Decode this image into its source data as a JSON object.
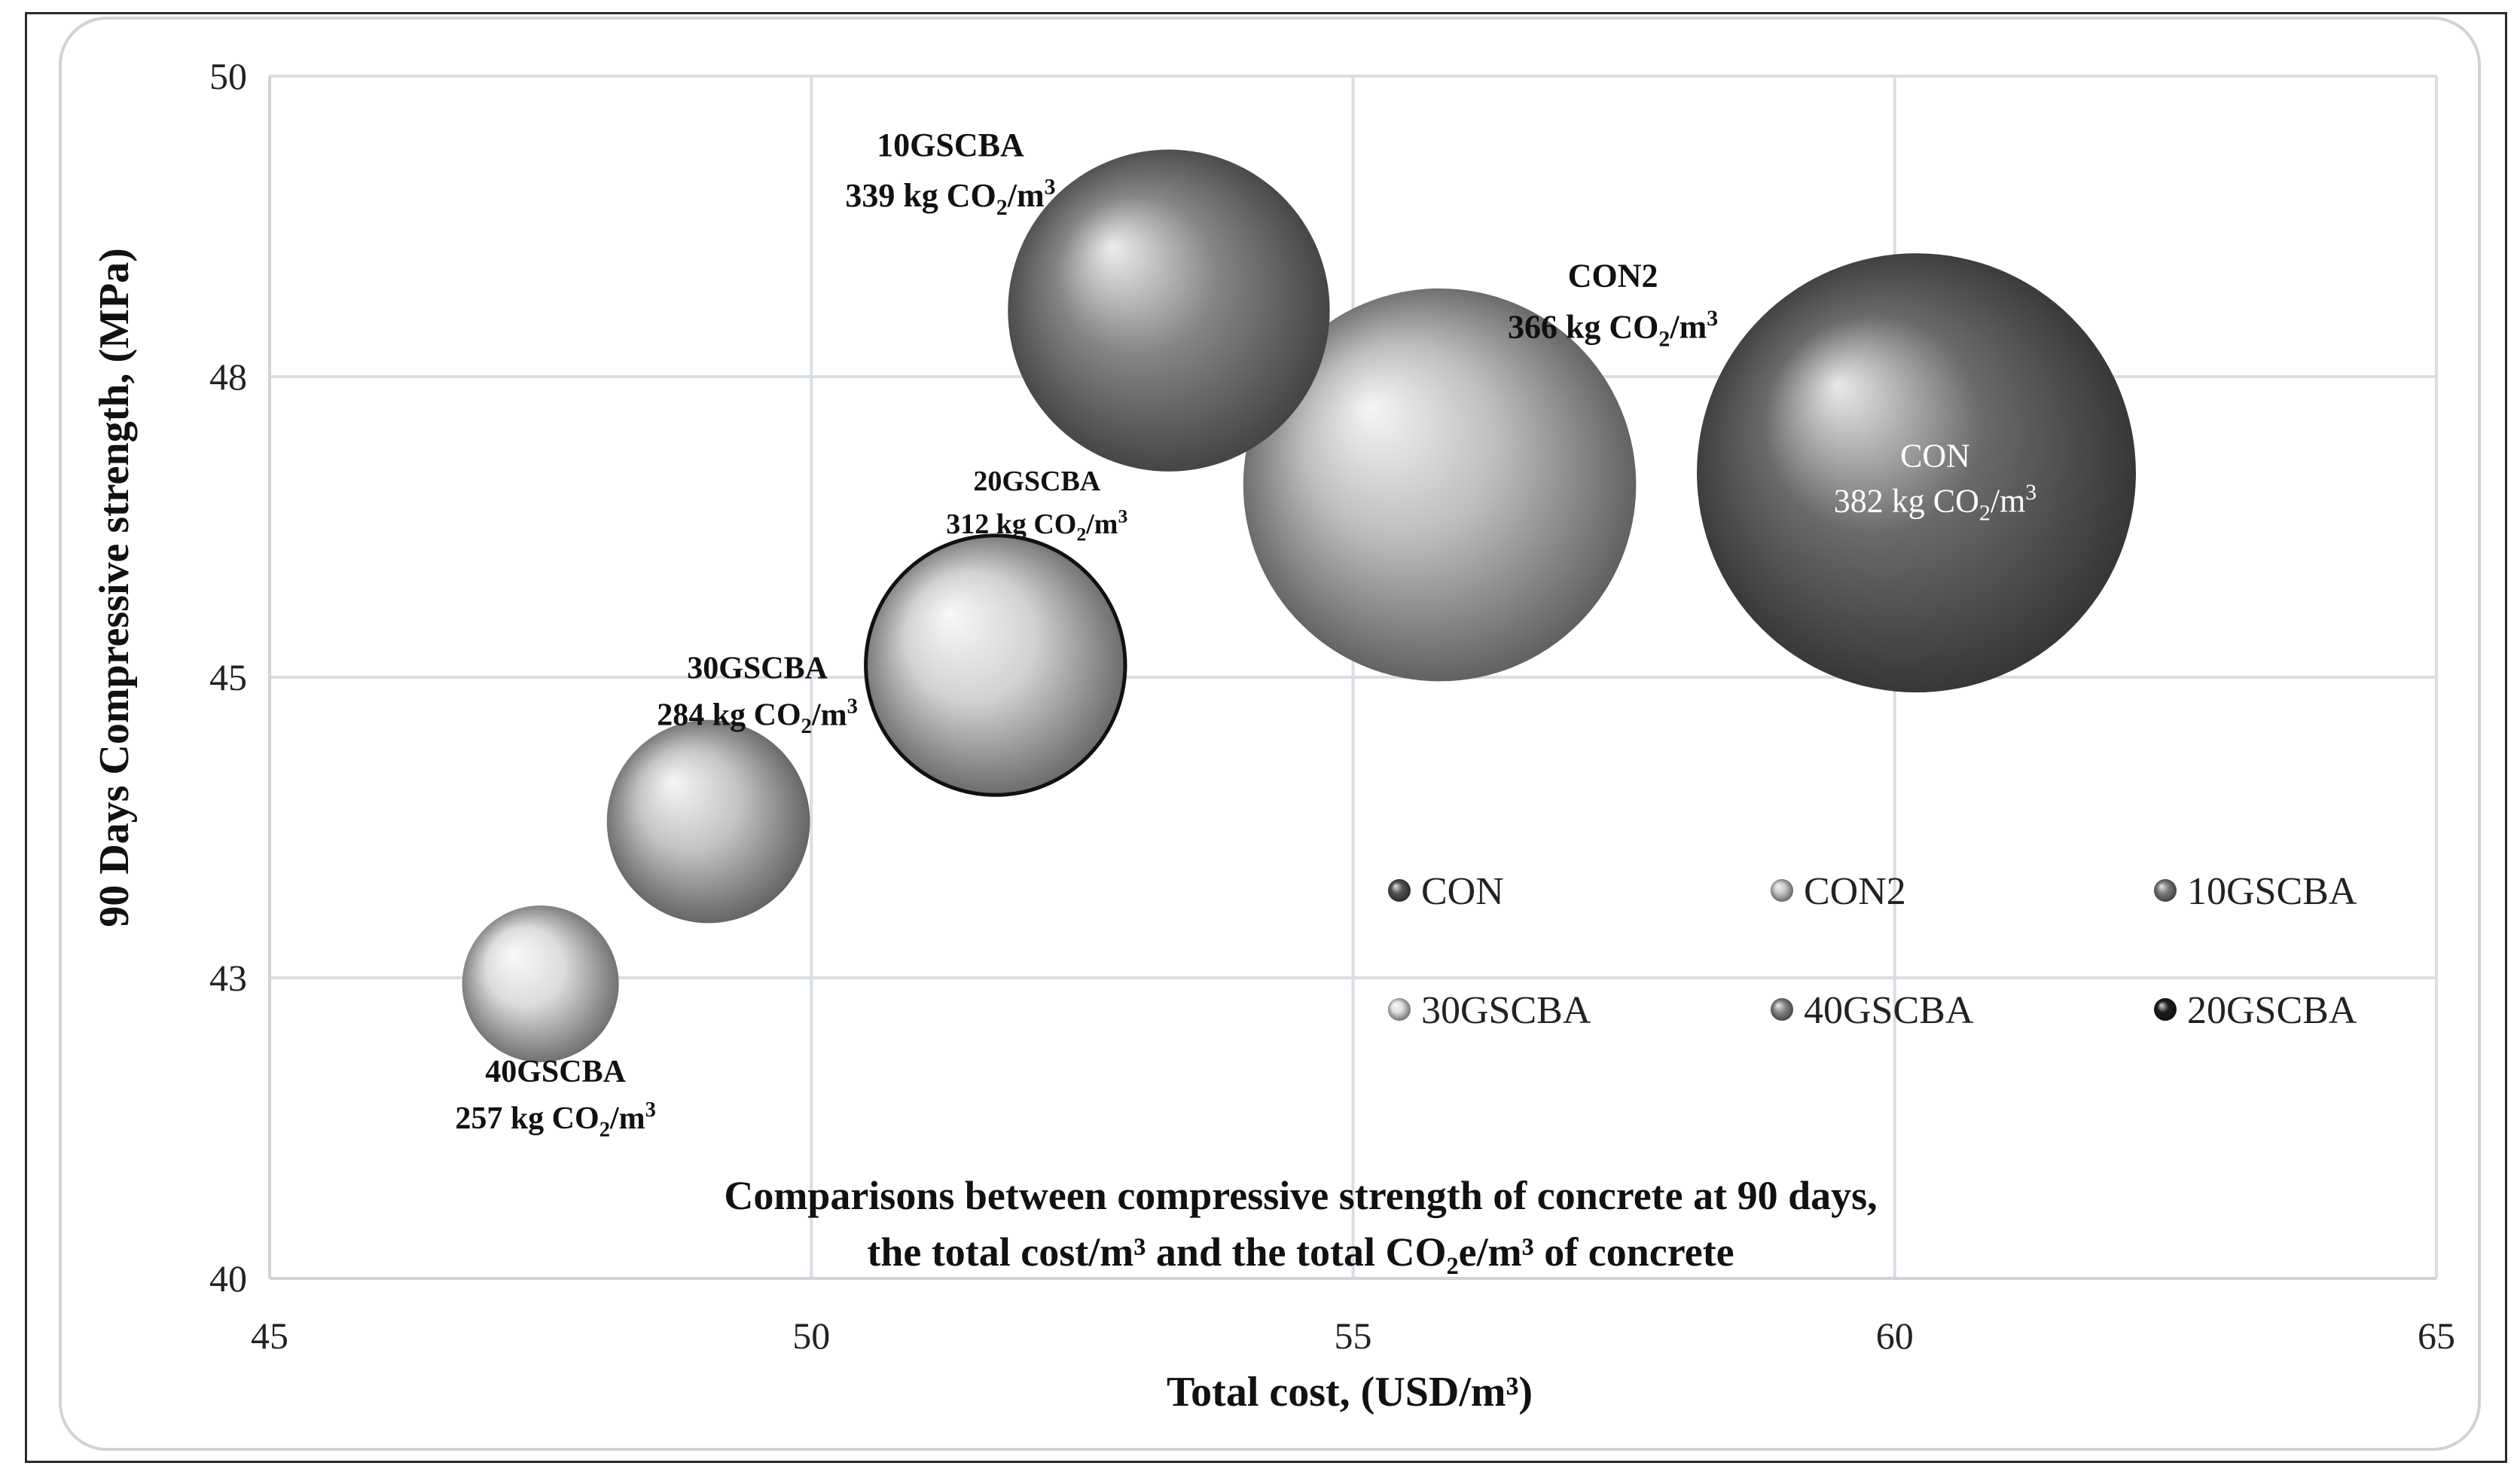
{
  "chart_data": {
    "type": "bubble",
    "title_lines": [
      "Comparisons between compressive strength of concrete at 90 days,",
      "the total cost/m³ and the total CO₂e/m³ of concrete"
    ],
    "xlabel": "Total cost, (USD/m³)",
    "ylabel": "90 Days Compressive strength, (MPa)",
    "xlim": [
      45,
      65
    ],
    "ylim": [
      40,
      50
    ],
    "x_ticks": [
      "45",
      "50",
      "55",
      "60",
      "65"
    ],
    "y_ticks": [
      {
        "value": 40,
        "label": "40"
      },
      {
        "value": 42.5,
        "label": "43"
      },
      {
        "value": 45,
        "label": "45"
      },
      {
        "value": 47.5,
        "label": "48"
      },
      {
        "value": 50,
        "label": "50"
      }
    ],
    "series": [
      {
        "name": "CON",
        "x": 60.2,
        "y": 46.7,
        "co2": 382,
        "label_name": "CON",
        "label_value": "382 kg CO",
        "label_sub": "2",
        "label_unit": "/m",
        "label_sup": "3",
        "color": "#6a6a6a",
        "label_color": "#ffffff",
        "label_bold": false,
        "outline": false
      },
      {
        "name": "CON2",
        "x": 55.8,
        "y": 46.6,
        "co2": 366,
        "label_name": "CON2",
        "label_value": "366 kg CO",
        "label_sub": "2",
        "label_unit": "/m",
        "label_sup": "3",
        "color": "#bdbdbd",
        "label_color": "#111111",
        "label_bold": true,
        "outline": false
      },
      {
        "name": "10GSCBA",
        "x": 53.3,
        "y": 48.05,
        "co2": 339,
        "label_name": "10GSCBA",
        "label_value": "339 kg CO",
        "label_sub": "2",
        "label_unit": "/m",
        "label_sup": "3",
        "color": "#858585",
        "label_color": "#111111",
        "label_bold": true,
        "outline": false
      },
      {
        "name": "20GSCBA",
        "x": 51.7,
        "y": 45.1,
        "co2": 312,
        "label_name": "20GSCBA",
        "label_value": "312 kg CO",
        "label_sub": "2",
        "label_unit": "/m",
        "label_sup": "3",
        "color": "#d2d2d2",
        "label_color": "#111111",
        "label_bold": true,
        "outline": true
      },
      {
        "name": "30GSCBA",
        "x": 49.05,
        "y": 43.8,
        "co2": 284,
        "label_name": "30GSCBA",
        "label_value": "284 kg CO",
        "label_sub": "2",
        "label_unit": "/m",
        "label_sup": "3",
        "color": "#c4c4c4",
        "label_color": "#111111",
        "label_bold": true,
        "outline": false
      },
      {
        "name": "40GSCBA",
        "x": 47.5,
        "y": 42.45,
        "co2": 257,
        "label_name": "40GSCBA",
        "label_value": "257 kg CO",
        "label_sub": "2",
        "label_unit": "/m",
        "label_sup": "3",
        "color": "#dcdcdc",
        "label_color": "#111111",
        "label_bold": true,
        "outline": false
      }
    ],
    "legend": {
      "placement": "inside lower-right",
      "items": [
        {
          "name": "CON",
          "color": "#555555"
        },
        {
          "name": "CON2",
          "color": "#c8c8c8"
        },
        {
          "name": "10GSCBA",
          "color": "#7c7c7c"
        },
        {
          "name": "30GSCBA",
          "color": "#dedede"
        },
        {
          "name": "40GSCBA",
          "color": "#8a8a8a"
        },
        {
          "name": "20GSCBA",
          "color": "#1e1e1e"
        }
      ]
    },
    "grid": true
  }
}
